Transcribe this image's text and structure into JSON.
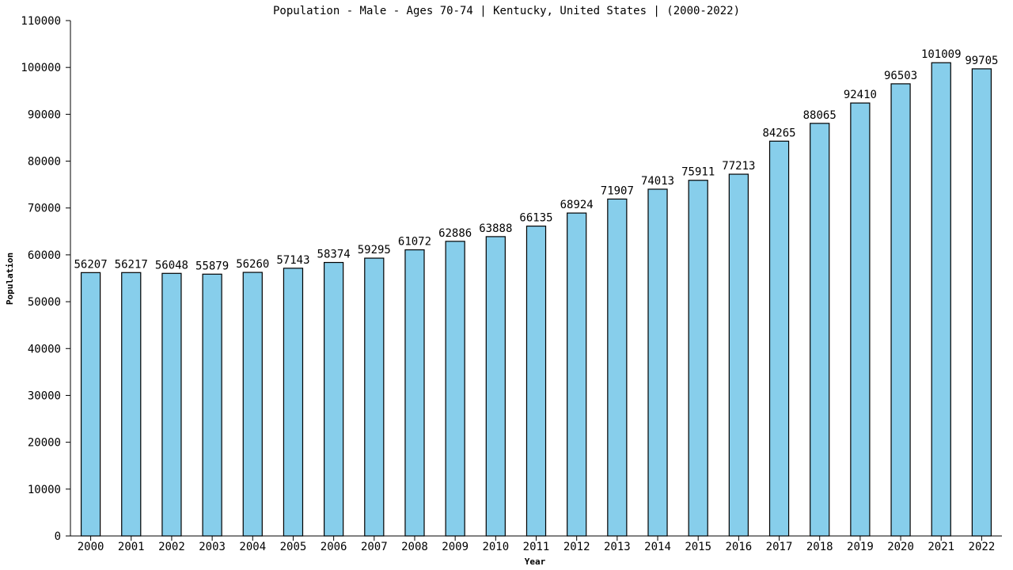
{
  "chart_data": {
    "type": "bar",
    "title": "Population - Male - Ages 70-74 | Kentucky, United States |  (2000-2022)",
    "xlabel": "Year",
    "ylabel": "Population",
    "ylim": [
      0,
      110000
    ],
    "yticks": [
      0,
      10000,
      20000,
      30000,
      40000,
      50000,
      60000,
      70000,
      80000,
      90000,
      100000,
      110000
    ],
    "grid": false,
    "legend": "none",
    "bar_color": "#87CEEB",
    "categories": [
      "2000",
      "2001",
      "2002",
      "2003",
      "2004",
      "2005",
      "2006",
      "2007",
      "2008",
      "2009",
      "2010",
      "2011",
      "2012",
      "2013",
      "2014",
      "2015",
      "2016",
      "2017",
      "2018",
      "2019",
      "2020",
      "2021",
      "2022"
    ],
    "values": [
      56207,
      56217,
      56048,
      55879,
      56260,
      57143,
      58374,
      59295,
      61072,
      62886,
      63888,
      66135,
      68924,
      71907,
      74013,
      75911,
      77213,
      84265,
      88065,
      92410,
      96503,
      101009,
      99705
    ]
  }
}
